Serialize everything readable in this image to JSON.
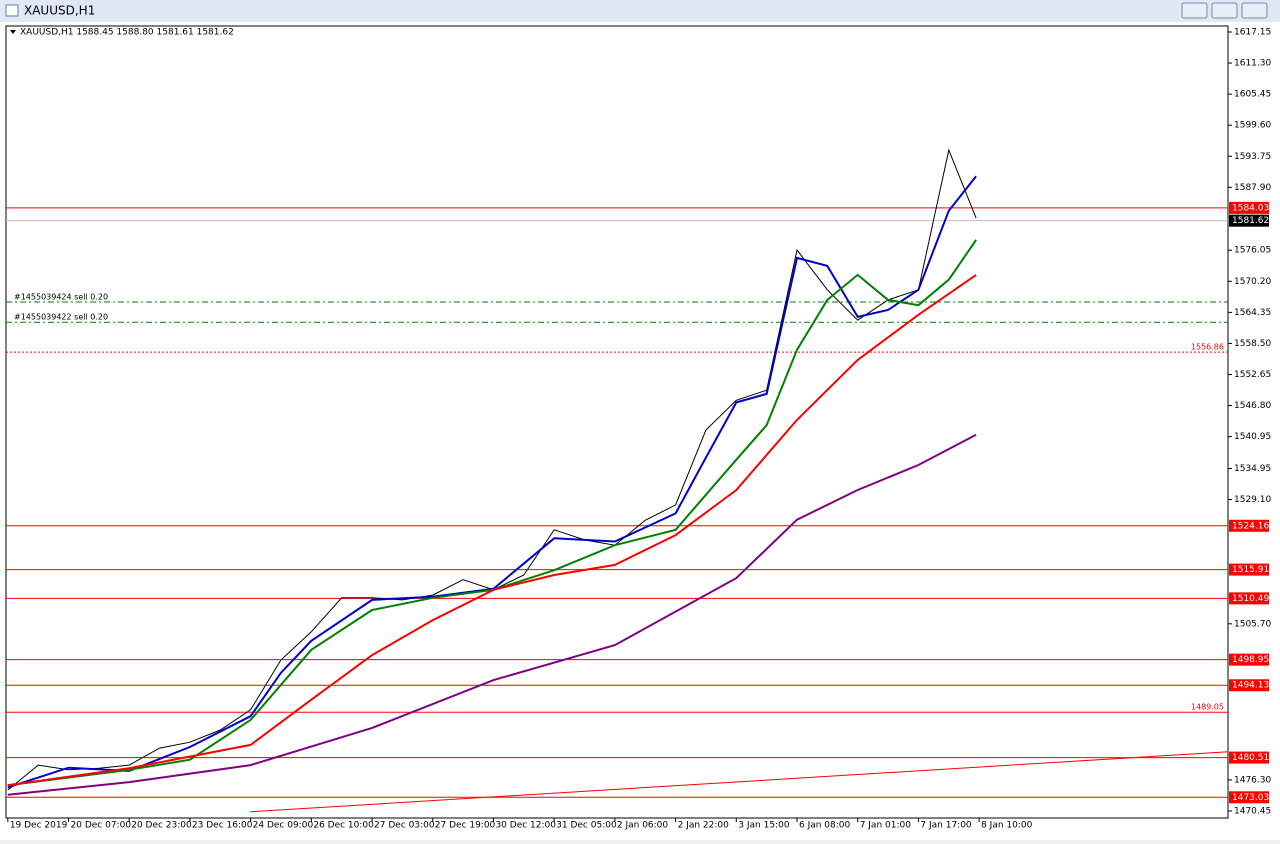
{
  "window_title": "XAUUSD,H1",
  "chart_data": {
    "type": "line",
    "header": "XAUUSD,H1  1588.45 1588.80 1581.61 1581.62",
    "xlim": [
      -0.03,
      20.1
    ],
    "ylim": [
      1469.13,
      1618.28
    ],
    "xticks": [
      {
        "value": 0,
        "label": "19 Dec 2019"
      },
      {
        "value": 1,
        "label": "20 Dec 07:00"
      },
      {
        "value": 2,
        "label": "20 Dec 23:00"
      },
      {
        "value": 3,
        "label": "23 Dec 16:00"
      },
      {
        "value": 4,
        "label": "24 Dec 09:00"
      },
      {
        "value": 5,
        "label": "26 Dec 10:00"
      },
      {
        "value": 6,
        "label": "27 Dec 03:00"
      },
      {
        "value": 7,
        "label": "27 Dec 19:00"
      },
      {
        "value": 8,
        "label": "30 Dec 12:00"
      },
      {
        "value": 9,
        "label": "31 Dec 05:00"
      },
      {
        "value": 10,
        "label": "2 Jan 06:00"
      },
      {
        "value": 11,
        "label": "2 Jan 22:00"
      },
      {
        "value": 12,
        "label": "3 Jan 15:00"
      },
      {
        "value": 13,
        "label": "6 Jan 08:00"
      },
      {
        "value": 14,
        "label": "7 Jan 01:00"
      },
      {
        "value": 15,
        "label": "7 Jan 17:00"
      },
      {
        "value": 16,
        "label": "8 Jan 10:00"
      }
    ],
    "yticks": [
      1617.15,
      {
        "value": 1611.3,
        "label": "1611.30"
      },
      1605.45,
      {
        "value": 1599.6,
        "label": "1599.60"
      },
      1593.75,
      {
        "value": 1587.9,
        "label": "1587.90"
      },
      1576.05,
      {
        "value": 1570.2,
        "label": "1570.20"
      },
      1564.35,
      {
        "value": 1558.5,
        "label": "1558.50"
      },
      1552.65,
      {
        "value": 1546.8,
        "label": "1546.80"
      },
      1540.95,
      1534.95,
      {
        "value": 1529.1,
        "label": "1529.10"
      },
      {
        "value": 1505.7,
        "label": "1505.70"
      },
      {
        "value": 1476.3,
        "label": "1476.30"
      },
      1470.45
    ],
    "series": [
      {
        "name": "price",
        "color": "#000000",
        "x": [
          0,
          0.5,
          1,
          1.5,
          2,
          2.5,
          3,
          3.5,
          4,
          4.5,
          5,
          5.5,
          6,
          6.5,
          7,
          7.5,
          8,
          8.5,
          9,
          9.5,
          10,
          10.5,
          11,
          11.5,
          12,
          12.5,
          13,
          13.5,
          14,
          14.5,
          15,
          15.5,
          15.95
        ],
        "values": [
          1474.4,
          1479.1,
          1478.2,
          1478.5,
          1479.1,
          1482.3,
          1483.4,
          1485.7,
          1489.5,
          1498.9,
          1504.2,
          1510.6,
          1510.6,
          1510.2,
          1511.1,
          1514.0,
          1512.1,
          1514.9,
          1523.4,
          1521.5,
          1520.5,
          1525.2,
          1528.1,
          1542.2,
          1547.8,
          1549.7,
          1576.1,
          1568.6,
          1562.9,
          1566.7,
          1568.6,
          1594.9,
          1582.1
        ]
      },
      {
        "name": "ma-fast",
        "color": "#0000cc",
        "x": [
          0,
          1,
          2,
          3,
          4,
          4.5,
          5,
          6,
          7,
          8,
          9,
          10,
          11,
          11.5,
          12,
          12.5,
          13,
          13.5,
          14,
          14.5,
          15,
          15.5,
          15.95
        ],
        "values": [
          1474.9,
          1478.6,
          1478.0,
          1482.5,
          1488.3,
          1496.5,
          1502.5,
          1510.2,
          1510.8,
          1512.3,
          1521.8,
          1521.2,
          1526.5,
          1537,
          1547.4,
          1549.0,
          1574.6,
          1573.1,
          1563.5,
          1564.8,
          1568.6,
          1583.5,
          1590.0
        ]
      },
      {
        "name": "ma-green",
        "color": "#008000",
        "x": [
          0,
          2,
          3,
          4,
          5,
          6,
          7,
          8,
          9,
          10,
          11,
          12,
          12.5,
          13,
          13.5,
          14,
          14.5,
          15,
          15.5,
          15.95
        ],
        "values": [
          1475.3,
          1478.2,
          1480.1,
          1487.6,
          1500.8,
          1508.3,
          1510.6,
          1512.1,
          1515.8,
          1520.5,
          1523.4,
          1536.6,
          1543.1,
          1557.3,
          1566.7,
          1571.4,
          1566.7,
          1565.7,
          1570.5,
          1578.0
        ]
      },
      {
        "name": "ma-red",
        "color": "#ff0000",
        "x": [
          0,
          2,
          4,
          5,
          6,
          7,
          8,
          9,
          10,
          11,
          12,
          13,
          14,
          15,
          15.95
        ],
        "values": [
          1475.3,
          1478.5,
          1482.9,
          1491.4,
          1499.8,
          1506.4,
          1512.1,
          1514.9,
          1516.8,
          1522.4,
          1530.9,
          1544.1,
          1555.4,
          1563.9,
          1571.4
        ]
      },
      {
        "name": "ma-purple",
        "color": "#800080",
        "x": [
          0,
          2,
          4,
          6,
          8,
          10,
          12,
          13,
          14,
          15,
          15.95
        ],
        "values": [
          1473.5,
          1475.9,
          1479.1,
          1486.1,
          1495.1,
          1501.7,
          1514.3,
          1525.3,
          1530.9,
          1535.6,
          1541.3
        ]
      }
    ],
    "levels": [
      {
        "value": 1584.03,
        "color": "#ff0000",
        "style": "solid"
      },
      {
        "value": 1581.62,
        "color": "#c0c0c0",
        "style": "bid"
      },
      {
        "value": 1524.16,
        "color": "#ff0000",
        "style": "solid"
      },
      {
        "value": 1515.91,
        "color": "#ff0000",
        "style": "solid"
      },
      {
        "value": 1510.49,
        "color": "#ff0000",
        "style": "solid"
      },
      {
        "value": 1498.95,
        "color": "#ff0000",
        "style": "solid"
      },
      {
        "value": 1494.13,
        "color": "#ff0000",
        "style": "solid"
      },
      {
        "value": 1489.05,
        "color": "#ff0000",
        "style": "solid",
        "text": true
      },
      {
        "value": 1480.51,
        "color": "#ff0000",
        "style": "solid"
      },
      {
        "value": 1473.03,
        "color": "#ff0000",
        "style": "solid"
      },
      {
        "value": 1556.86,
        "color": "#ff0000",
        "style": "dotted",
        "text": true
      }
    ],
    "orders": [
      {
        "label": "#1455039424 sell 0.20",
        "value": 1566.3,
        "color": "#008000"
      },
      {
        "label": "#1455039422 sell 0.20",
        "value": 1562.5,
        "color": "#008000"
      }
    ],
    "trendline": {
      "x": [
        3.99,
        20.1
      ],
      "values": [
        1470.3,
        1481.6
      ],
      "color": "#ff0000"
    }
  }
}
